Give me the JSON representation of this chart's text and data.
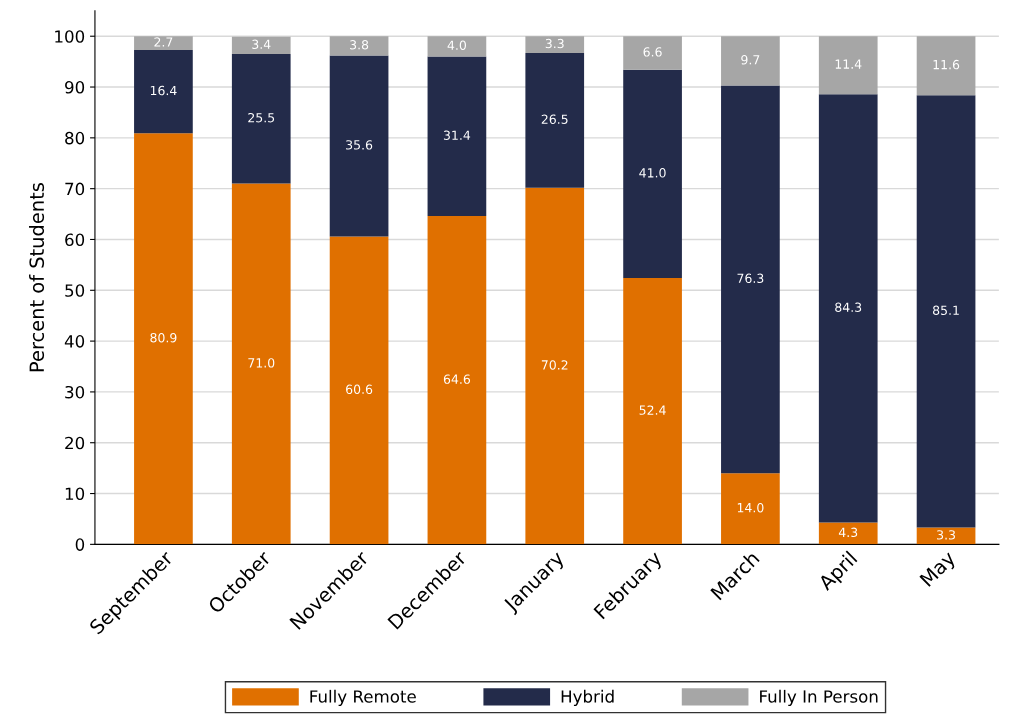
{
  "chart_data": {
    "type": "bar",
    "stacked": true,
    "ylabel": "Percent of Students",
    "categories": [
      "September",
      "October",
      "November",
      "December",
      "January",
      "February",
      "March",
      "April",
      "May"
    ],
    "series": [
      {
        "name": "Fully Remote",
        "color": "#e07000",
        "values": [
          80.9,
          71,
          60.6,
          64.6,
          70.2,
          52.4,
          14,
          4.3,
          3.3
        ],
        "value_labels": [
          "80.9",
          "71.0",
          "60.6",
          "64.6",
          "70.2",
          "52.4",
          "14.0",
          "4.3",
          "3.3"
        ]
      },
      {
        "name": "Hybrid",
        "color": "#232b4a",
        "values": [
          16.4,
          25.5,
          35.6,
          31.4,
          26.5,
          41,
          76.3,
          84.3,
          85.1
        ],
        "value_labels": [
          "16.4",
          "25.5",
          "35.6",
          "31.4",
          "26.5",
          "41.0",
          "76.3",
          "84.3",
          "85.1"
        ]
      },
      {
        "name": "Fully In Person",
        "color": "#a6a6a6",
        "values": [
          2.7,
          3.4,
          3.8,
          4,
          3.3,
          6.6,
          9.7,
          11.4,
          11.6
        ],
        "value_labels": [
          "2.7",
          "3.4",
          "3.8",
          "4.0",
          "3.3",
          "6.6",
          "9.7",
          "11.4",
          "11.6"
        ]
      }
    ],
    "ylim": [
      0,
      105
    ],
    "yticks": [
      0,
      10,
      20,
      30,
      40,
      50,
      60,
      70,
      80,
      90,
      100
    ],
    "grid": "y",
    "legend": "bottom"
  }
}
